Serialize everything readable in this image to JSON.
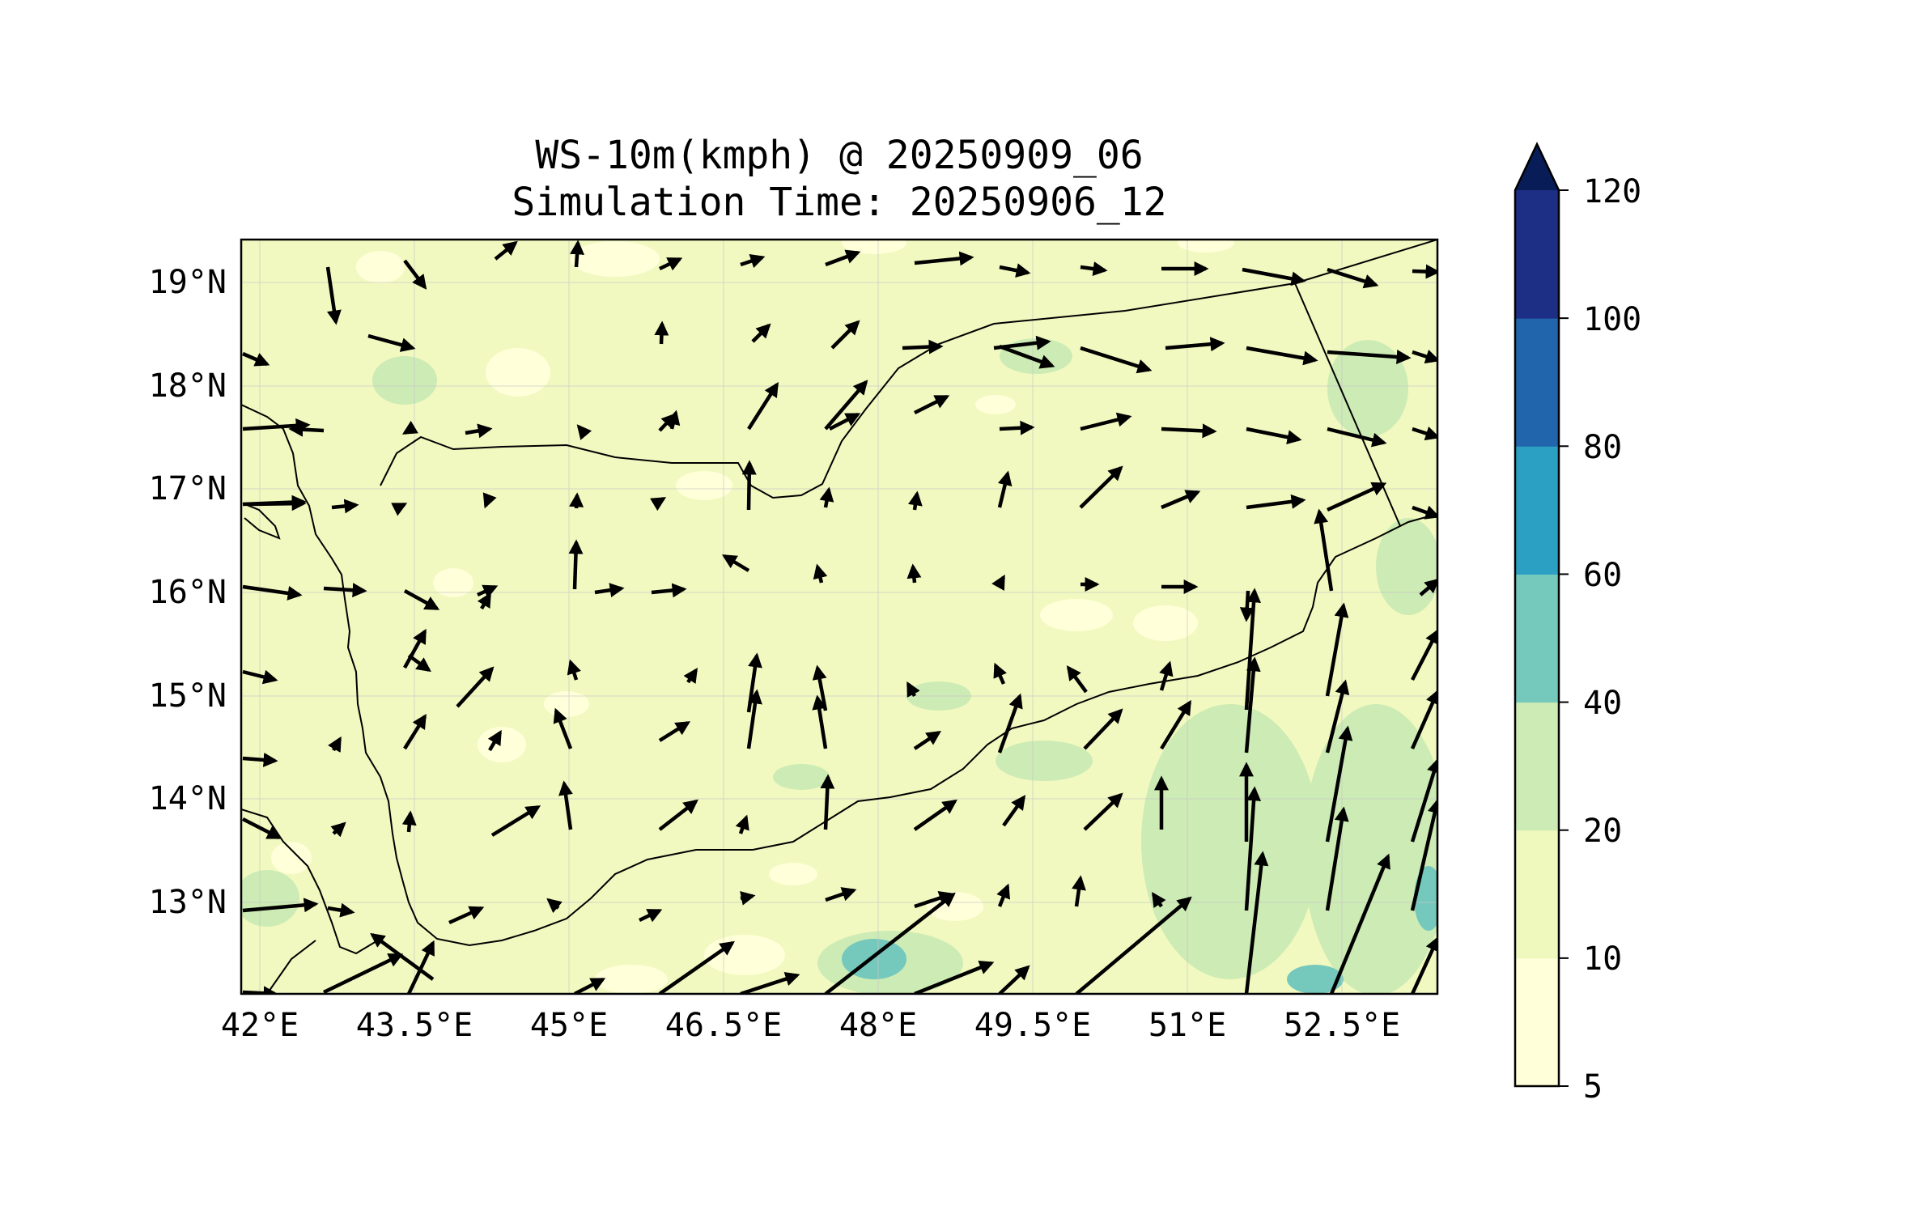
{
  "title": "WS-10m(kmph) @ 20250909_06",
  "subtitle": "Simulation Time: 20250906_12",
  "map": {
    "lon_range": [
      42,
      53
    ],
    "lat_range": [
      12.1,
      19.4
    ],
    "lon_ticks": [
      "42°E",
      "43.5°E",
      "45°E",
      "46.5°E",
      "48°E",
      "49.5°E",
      "51°E",
      "52.5°E"
    ],
    "lat_ticks": [
      "19°N",
      "18°N",
      "17°N",
      "16°N",
      "15°N",
      "14°N",
      "13°N"
    ],
    "background_color": "#f1f9c0",
    "calm_color": "#ffffd9"
  },
  "colorbar": {
    "levels": [
      "5",
      "10",
      "20",
      "40",
      "60",
      "80",
      "100",
      "120"
    ],
    "colors": [
      "#ffffd9",
      "#eff8bd",
      "#cdebb4",
      "#75c8bc",
      "#2ba0c2",
      "#2166ac",
      "#1d2f85",
      "#081d58"
    ],
    "extend": "max"
  }
}
